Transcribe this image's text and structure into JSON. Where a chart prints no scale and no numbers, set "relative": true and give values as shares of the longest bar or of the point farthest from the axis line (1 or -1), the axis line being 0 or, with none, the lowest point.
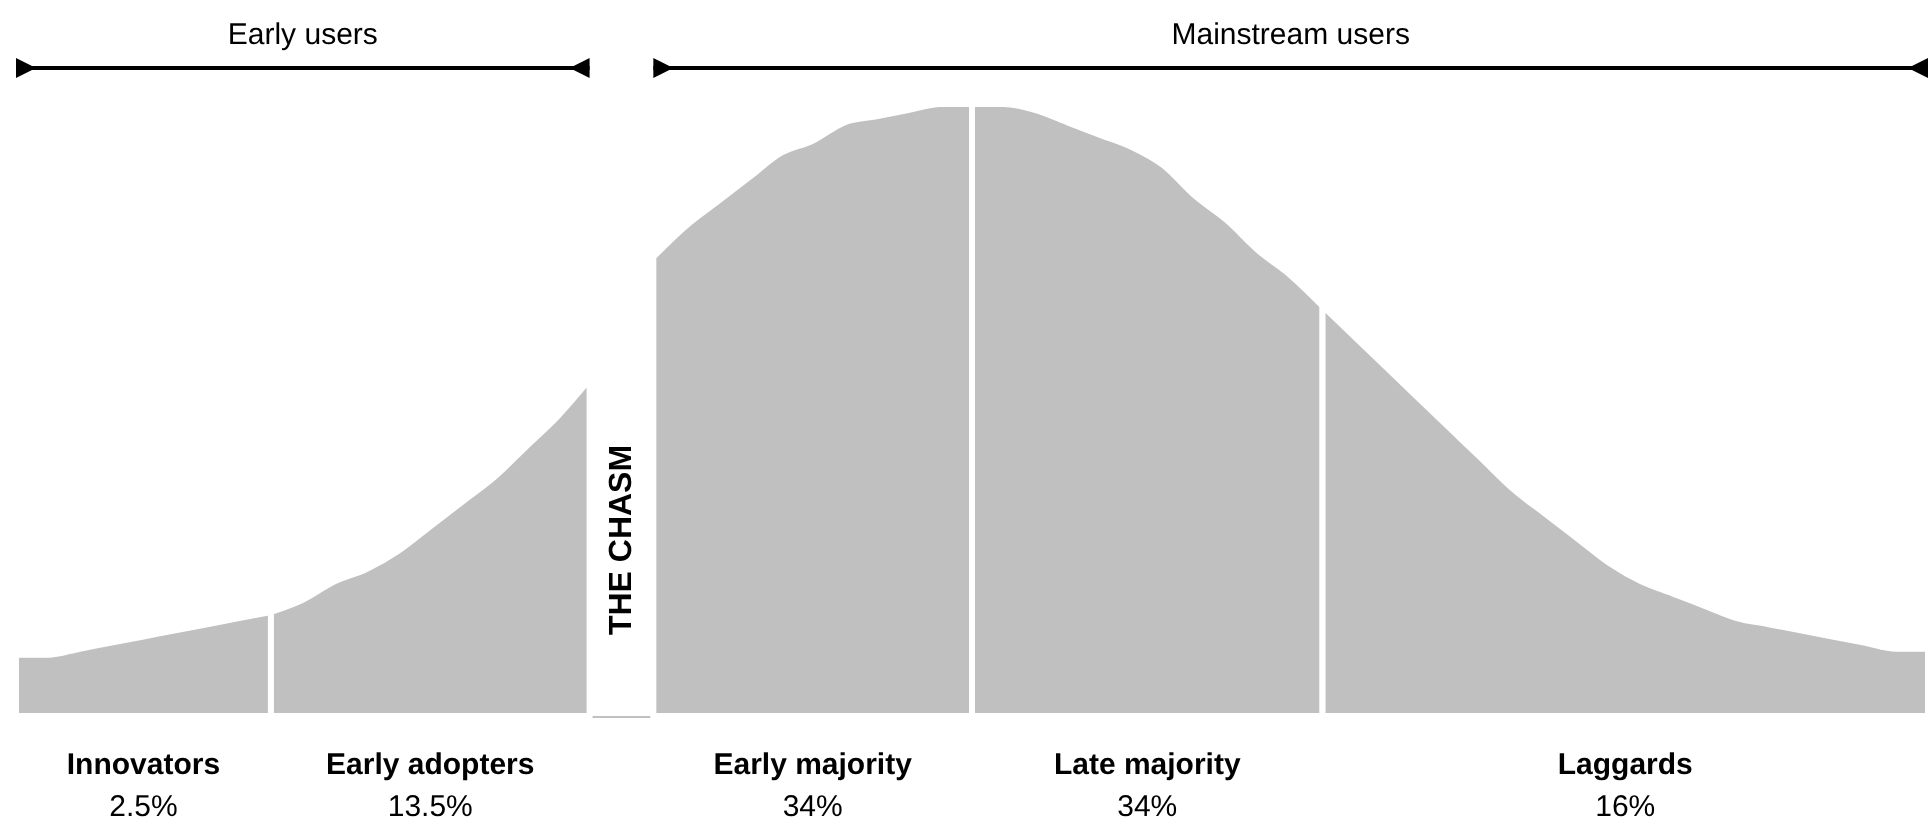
{
  "chart_data": {
    "type": "area",
    "relative": true,
    "categories": [
      null,
      null,
      null,
      null,
      null,
      null,
      null,
      null,
      null,
      null,
      null,
      null,
      null,
      null,
      null,
      null,
      null,
      null,
      null,
      null,
      null,
      null,
      null,
      null,
      null,
      null,
      null,
      null,
      null,
      null,
      null,
      null,
      null,
      null,
      null,
      null,
      null,
      null,
      null,
      null,
      null,
      null,
      null,
      null,
      null,
      null,
      null,
      null,
      null,
      null,
      null,
      null,
      null,
      null,
      null,
      null,
      null,
      null,
      null,
      null,
      null
    ],
    "series": [
      {
        "name": "Innovators",
        "color": "#c0c0c0",
        "values": [
          0.1,
          0.1,
          0.11,
          0.12,
          0.13,
          0.14,
          0.15,
          0.16,
          0.17,
          null,
          null,
          null,
          null,
          null,
          null,
          null,
          null,
          null,
          null,
          null,
          null,
          null,
          null,
          null,
          null,
          null,
          null,
          null,
          null,
          null,
          null,
          null,
          null,
          null,
          null,
          null,
          null,
          null,
          null,
          null,
          null,
          null,
          null,
          null,
          null,
          null,
          null,
          null,
          null,
          null,
          null,
          null,
          null,
          null,
          null,
          null,
          null,
          null,
          null,
          null,
          null
        ]
      },
      {
        "name": "Early adopters",
        "color": "#c0c0c0",
        "values": [
          null,
          null,
          null,
          null,
          null,
          null,
          null,
          null,
          0.17,
          0.19,
          0.22,
          0.24,
          0.27,
          0.31,
          0.35,
          0.39,
          0.44,
          0.49,
          0.55,
          null,
          null,
          null,
          null,
          null,
          null,
          null,
          null,
          null,
          null,
          null,
          null,
          null,
          null,
          null,
          null,
          null,
          null,
          null,
          null,
          null,
          null,
          null,
          null,
          null,
          null,
          null,
          null,
          null,
          null,
          null,
          null,
          null,
          null,
          null,
          null,
          null,
          null,
          null,
          null,
          null,
          null
        ]
      },
      {
        "name": "Early majority",
        "color": "#c0c0c0",
        "values": [
          null,
          null,
          null,
          null,
          null,
          null,
          null,
          null,
          null,
          null,
          null,
          null,
          null,
          null,
          null,
          null,
          null,
          null,
          null,
          null,
          0.75,
          0.8,
          0.84,
          0.88,
          0.92,
          0.94,
          0.97,
          0.98,
          0.99,
          1,
          1,
          null,
          null,
          null,
          null,
          null,
          null,
          null,
          null,
          null,
          null,
          null,
          null,
          null,
          null,
          null,
          null,
          null,
          null,
          null,
          null,
          null,
          null,
          null,
          null,
          null,
          null,
          null,
          null,
          null,
          null
        ]
      },
      {
        "name": "Late majority",
        "color": "#c0c0c0",
        "values": [
          null,
          null,
          null,
          null,
          null,
          null,
          null,
          null,
          null,
          null,
          null,
          null,
          null,
          null,
          null,
          null,
          null,
          null,
          null,
          null,
          null,
          null,
          null,
          null,
          null,
          null,
          null,
          null,
          null,
          null,
          1,
          1,
          0.99,
          0.97,
          0.95,
          0.93,
          0.9,
          0.85,
          0.81,
          0.76,
          0.72,
          0.67,
          null,
          null,
          null,
          null,
          null,
          null,
          null,
          null,
          null,
          null,
          null,
          null,
          null,
          null,
          null,
          null,
          null,
          null,
          null
        ]
      },
      {
        "name": "Laggards",
        "color": "#c0c0c0",
        "values": [
          null,
          null,
          null,
          null,
          null,
          null,
          null,
          null,
          null,
          null,
          null,
          null,
          null,
          null,
          null,
          null,
          null,
          null,
          null,
          null,
          null,
          null,
          null,
          null,
          null,
          null,
          null,
          null,
          null,
          null,
          null,
          null,
          null,
          null,
          null,
          null,
          null,
          null,
          null,
          null,
          null,
          0.67,
          0.62,
          0.57,
          0.52,
          0.47,
          0.42,
          0.37,
          0.33,
          0.29,
          0.25,
          0.22,
          0.2,
          0.18,
          0.16,
          0.15,
          0.14,
          0.13,
          0.12,
          0.11,
          0.11
        ]
      }
    ],
    "annotations": [
      "Early users",
      "Mainstream users",
      "THE CHASM",
      "2.5%",
      "13.5%",
      "34%",
      "34%",
      "16%"
    ]
  }
}
